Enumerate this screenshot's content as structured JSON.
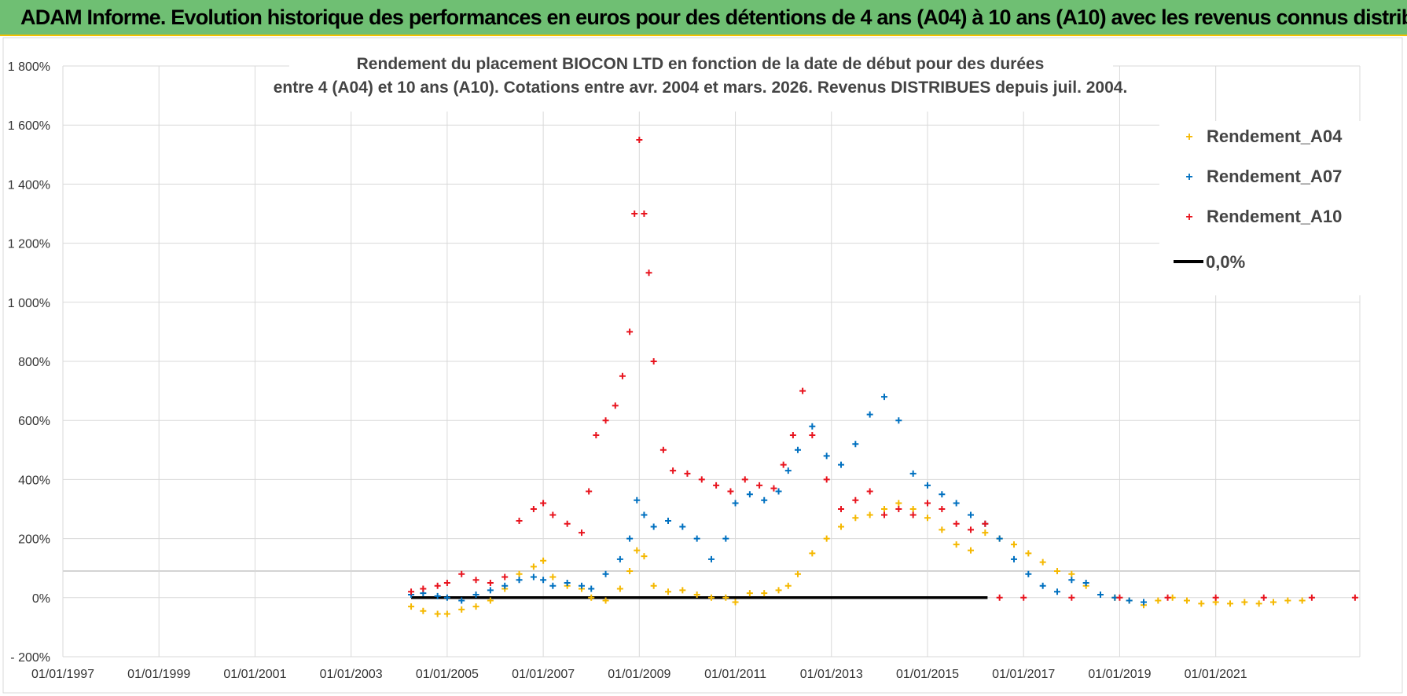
{
  "banner": {
    "title": "ADAM Informe. Evolution historique des performances en euros pour des détentions de 4 ans (A04) à 10 ans (A10) avec les revenus connus distribués"
  },
  "chart_data": {
    "type": "scatter",
    "title_line1": "Rendement du placement BIOCON LTD en fonction de la date de début pour des durées",
    "title_line2": "entre 4 (A04) et 10 ans (A10).  Cotations entre avr. 2004 et mars. 2026.  Revenus DISTRIBUES depuis juil. 2004.",
    "xlabel": "",
    "ylabel": "",
    "xlim": [
      1997.0,
      2024.0
    ],
    "ylim": [
      -200,
      1800
    ],
    "x_ticks": [
      "01/01/1997",
      "01/01/1999",
      "01/01/2001",
      "01/01/2003",
      "01/01/2005",
      "01/01/2007",
      "01/01/2009",
      "01/01/2011",
      "01/01/2013",
      "01/01/2015",
      "01/01/2017",
      "01/01/2019",
      "01/01/2021"
    ],
    "x_tick_years": [
      1997,
      1999,
      2001,
      2003,
      2005,
      2007,
      2009,
      2011,
      2013,
      2015,
      2017,
      2019,
      2021
    ],
    "y_ticks": [
      "1 800%",
      "1 600%",
      "1 400%",
      "1 200%",
      "1 000%",
      "800%",
      "600%",
      "400%",
      "200%",
      "0%",
      "- 200%"
    ],
    "y_tick_values": [
      1800,
      1600,
      1400,
      1200,
      1000,
      800,
      600,
      400,
      200,
      0,
      -200
    ],
    "legend_position": "top-right",
    "series": [
      {
        "name": "Rendement_A04",
        "color": "#f5b800",
        "marker": "+",
        "x": [
          2004.25,
          2004.5,
          2004.8,
          2005.0,
          2005.3,
          2005.6,
          2005.9,
          2006.2,
          2006.5,
          2006.8,
          2007.0,
          2007.2,
          2007.5,
          2007.8,
          2008.0,
          2008.3,
          2008.6,
          2008.8,
          2008.95,
          2009.1,
          2009.3,
          2009.6,
          2009.9,
          2010.2,
          2010.5,
          2010.8,
          2011.0,
          2011.3,
          2011.6,
          2011.9,
          2012.1,
          2012.3,
          2012.6,
          2012.9,
          2013.2,
          2013.5,
          2013.8,
          2014.1,
          2014.4,
          2014.7,
          2015.0,
          2015.3,
          2015.6,
          2015.9,
          2016.2,
          2016.5,
          2016.8,
          2017.1,
          2017.4,
          2017.7,
          2018.0,
          2018.3,
          2018.6,
          2018.9,
          2019.2,
          2019.5,
          2019.8,
          2020.1,
          2020.4,
          2020.7,
          2021.0,
          2021.3,
          2021.6,
          2021.9,
          2022.2,
          2022.5,
          2022.8
        ],
        "y": [
          -30,
          -45,
          -55,
          -55,
          -40,
          -30,
          -10,
          30,
          80,
          105,
          125,
          70,
          40,
          30,
          0,
          -10,
          30,
          90,
          160,
          140,
          40,
          20,
          25,
          10,
          0,
          0,
          -15,
          15,
          15,
          25,
          40,
          80,
          150,
          200,
          240,
          270,
          280,
          300,
          320,
          300,
          270,
          230,
          180,
          160,
          220,
          200,
          180,
          150,
          120,
          90,
          80,
          40,
          10,
          0,
          -10,
          -25,
          -10,
          0,
          -10,
          -20,
          -15,
          -20,
          -15,
          -20,
          -15,
          -10,
          -10
        ]
      },
      {
        "name": "Rendement_A07",
        "color": "#0070c0",
        "marker": "+",
        "x": [
          2004.25,
          2004.5,
          2004.8,
          2005.0,
          2005.3,
          2005.6,
          2005.9,
          2006.2,
          2006.5,
          2006.8,
          2007.0,
          2007.2,
          2007.5,
          2007.8,
          2008.0,
          2008.3,
          2008.6,
          2008.8,
          2008.95,
          2009.1,
          2009.3,
          2009.6,
          2009.9,
          2010.2,
          2010.5,
          2010.8,
          2011.0,
          2011.3,
          2011.6,
          2011.9,
          2012.1,
          2012.3,
          2012.6,
          2012.9,
          2013.2,
          2013.5,
          2013.8,
          2014.1,
          2014.4,
          2014.7,
          2015.0,
          2015.3,
          2015.6,
          2015.9,
          2016.2,
          2016.5,
          2016.8,
          2017.1,
          2017.4,
          2017.7,
          2018.0,
          2018.3,
          2018.6,
          2018.9,
          2019.2,
          2019.5
        ],
        "y": [
          10,
          15,
          5,
          0,
          -10,
          10,
          25,
          40,
          60,
          70,
          60,
          40,
          50,
          40,
          30,
          80,
          130,
          200,
          330,
          280,
          240,
          260,
          240,
          200,
          130,
          200,
          320,
          350,
          330,
          360,
          430,
          500,
          580,
          480,
          450,
          520,
          620,
          680,
          600,
          420,
          380,
          350,
          320,
          280,
          250,
          200,
          130,
          80,
          40,
          20,
          60,
          50,
          10,
          0,
          -10,
          -15
        ]
      },
      {
        "name": "Rendement_A10",
        "color": "#e8141e",
        "marker": "+",
        "x": [
          2004.25,
          2004.5,
          2004.8,
          2005.0,
          2005.3,
          2005.6,
          2005.9,
          2006.2,
          2006.5,
          2006.8,
          2007.0,
          2007.2,
          2007.5,
          2007.8,
          2007.95,
          2008.1,
          2008.3,
          2008.5,
          2008.65,
          2008.8,
          2008.9,
          2009.0,
          2009.1,
          2009.2,
          2009.3,
          2009.5,
          2009.7,
          2010.0,
          2010.3,
          2010.6,
          2010.9,
          2011.2,
          2011.5,
          2011.8,
          2012.0,
          2012.2,
          2012.4,
          2012.6,
          2012.9,
          2013.2,
          2013.5,
          2013.8,
          2014.1,
          2014.4,
          2014.7,
          2015.0,
          2015.3,
          2015.6,
          2015.9,
          2016.2,
          2016.5,
          2017.0,
          2018.0,
          2019.0,
          2020.0,
          2021.0,
          2022.0,
          2023.0,
          2023.9
        ],
        "y": [
          20,
          30,
          40,
          50,
          80,
          60,
          50,
          70,
          260,
          300,
          320,
          280,
          250,
          220,
          360,
          550,
          600,
          650,
          750,
          900,
          1300,
          1550,
          1300,
          1100,
          800,
          500,
          430,
          420,
          400,
          380,
          360,
          400,
          380,
          370,
          450,
          550,
          700,
          550,
          400,
          300,
          330,
          360,
          280,
          300,
          280,
          320,
          300,
          250,
          230,
          250,
          0,
          0,
          0,
          0,
          0,
          0,
          0,
          0,
          0
        ]
      },
      {
        "name": "0,0%",
        "color": "#000000",
        "type": "line",
        "x": [
          2004.25,
          2016.25
        ],
        "y": [
          0,
          0
        ]
      }
    ]
  }
}
